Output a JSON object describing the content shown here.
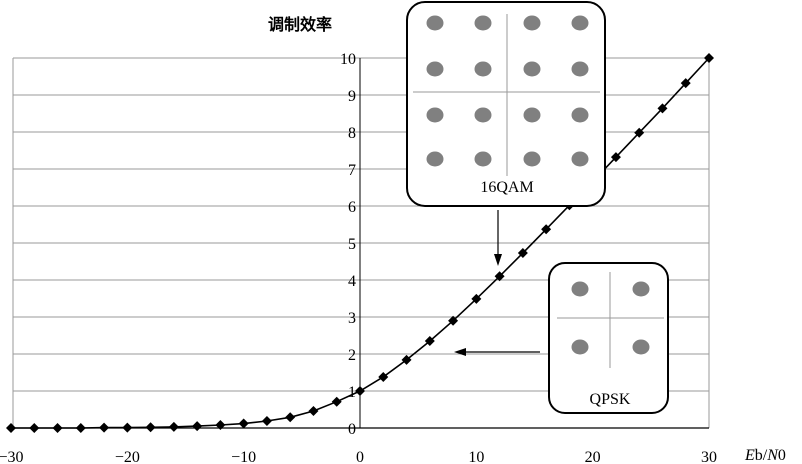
{
  "chart_data": {
    "type": "line",
    "ylabel": "调制效率",
    "xlabel": {
      "e": "E",
      "e_sub": "b",
      "slash": "/",
      "n": "N",
      "n_sub": "0"
    },
    "xlim": [
      -30,
      30
    ],
    "ylim": [
      0,
      10
    ],
    "x_ticks": [
      -30,
      -20,
      -10,
      0,
      10,
      20,
      30
    ],
    "x_tick_labels": [
      "−30",
      "−20",
      "−10",
      "0",
      "10",
      "20",
      "30"
    ],
    "y_ticks": [
      0,
      1,
      2,
      3,
      4,
      5,
      6,
      7,
      8,
      9,
      10
    ],
    "grid": "horizontal",
    "series": [
      {
        "marker": "diamond",
        "x": [
          -30,
          -28,
          -26,
          -24,
          -22,
          -20,
          -18,
          -16,
          -14,
          -12,
          -10,
          -8,
          -6,
          -4,
          -2,
          0,
          2,
          4,
          6,
          8,
          10,
          12,
          14,
          16,
          18,
          20,
          22,
          24,
          26,
          28,
          30
        ],
        "y": [
          0.0,
          0.0,
          0.0,
          0.0,
          0.01,
          0.01,
          0.02,
          0.03,
          0.05,
          0.08,
          0.12,
          0.19,
          0.29,
          0.46,
          0.71,
          1.0,
          1.38,
          1.84,
          2.35,
          2.9,
          3.49,
          4.1,
          4.73,
          5.37,
          6.02,
          6.66,
          7.32,
          7.98,
          8.64,
          9.32,
          10.0
        ]
      }
    ],
    "insets": [
      {
        "label": "16QAM",
        "points": 16
      },
      {
        "label": "QPSK",
        "points": 4
      }
    ]
  },
  "colors": {
    "line": "#000000",
    "grid": "#9a9a9a",
    "dot": "#808080",
    "inset_border": "#000000"
  }
}
